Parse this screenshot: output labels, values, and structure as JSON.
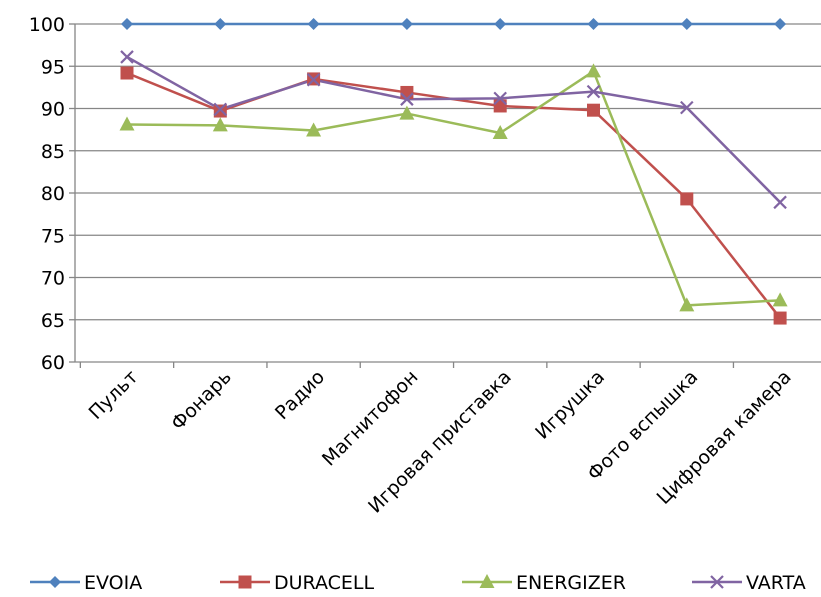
{
  "chart_data": {
    "type": "line",
    "categories": [
      "Пульт",
      "Фонарь",
      "Радио",
      "Магнитофон",
      "Игровая приставка",
      "Игрушка",
      "Фото вспышка",
      "Цифровая камера"
    ],
    "y_ticks": [
      "60",
      "65",
      "70",
      "75",
      "80",
      "85",
      "90",
      "95",
      "100"
    ],
    "ylim": [
      60,
      100
    ],
    "grid": true,
    "legend_position": "bottom",
    "series": [
      {
        "name": "EVOIA",
        "color": "#4F81BD",
        "marker": "diamond",
        "values": [
          100,
          100,
          100,
          100,
          100,
          100,
          100,
          100
        ]
      },
      {
        "name": "DURACELL",
        "color": "#C0504D",
        "marker": "square",
        "values": [
          94.2,
          89.7,
          93.5,
          91.9,
          90.3,
          89.8,
          79.3,
          65.2
        ]
      },
      {
        "name": "ENERGIZER",
        "color": "#9BBB59",
        "marker": "triangle",
        "values": [
          88.1,
          88.0,
          87.4,
          89.4,
          87.1,
          94.4,
          66.7,
          67.3
        ]
      },
      {
        "name": "VARTA",
        "color": "#8064A2",
        "marker": "x",
        "values": [
          96.1,
          89.9,
          93.4,
          91.1,
          91.2,
          92.0,
          90.1,
          78.9
        ]
      }
    ]
  }
}
